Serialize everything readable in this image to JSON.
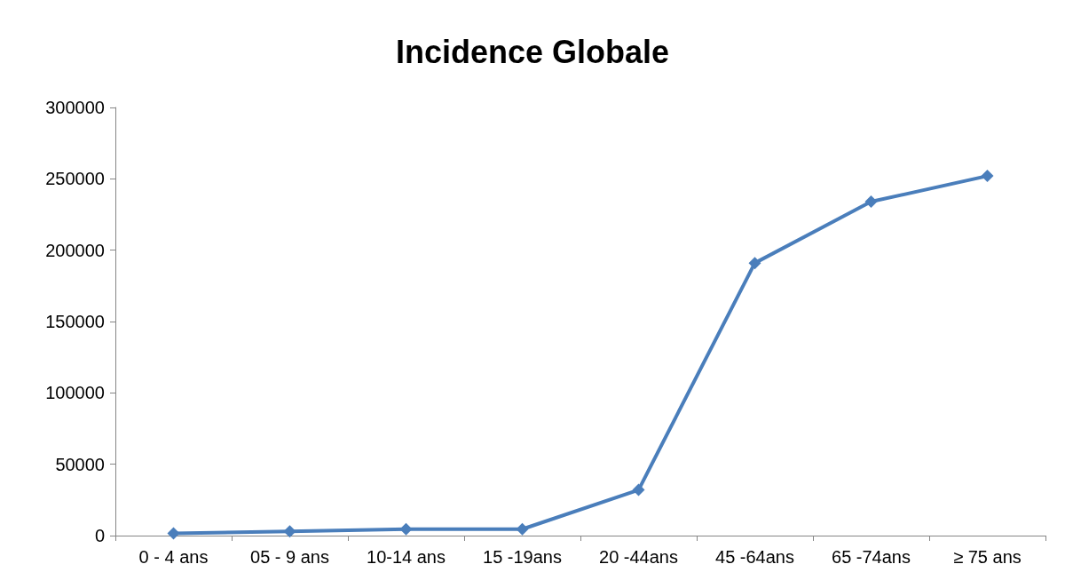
{
  "chart_data": {
    "type": "line",
    "title": "Incidence Globale",
    "categories": [
      "0 - 4 ans",
      "05 - 9 ans",
      "10-14 ans",
      "15 -19ans",
      "20 -44ans",
      "45 -64ans",
      "65 -74ans",
      "≥ 75 ans"
    ],
    "series": [
      {
        "color": "#4a7ebb",
        "values": [
          1500,
          3000,
          4500,
          4500,
          32000,
          191000,
          234000,
          252000
        ]
      }
    ],
    "ylim": [
      0,
      300000
    ],
    "yticks": [
      0,
      50000,
      100000,
      150000,
      200000,
      250000,
      300000
    ],
    "grid": false,
    "marker": "diamond",
    "line_style": "solid"
  }
}
